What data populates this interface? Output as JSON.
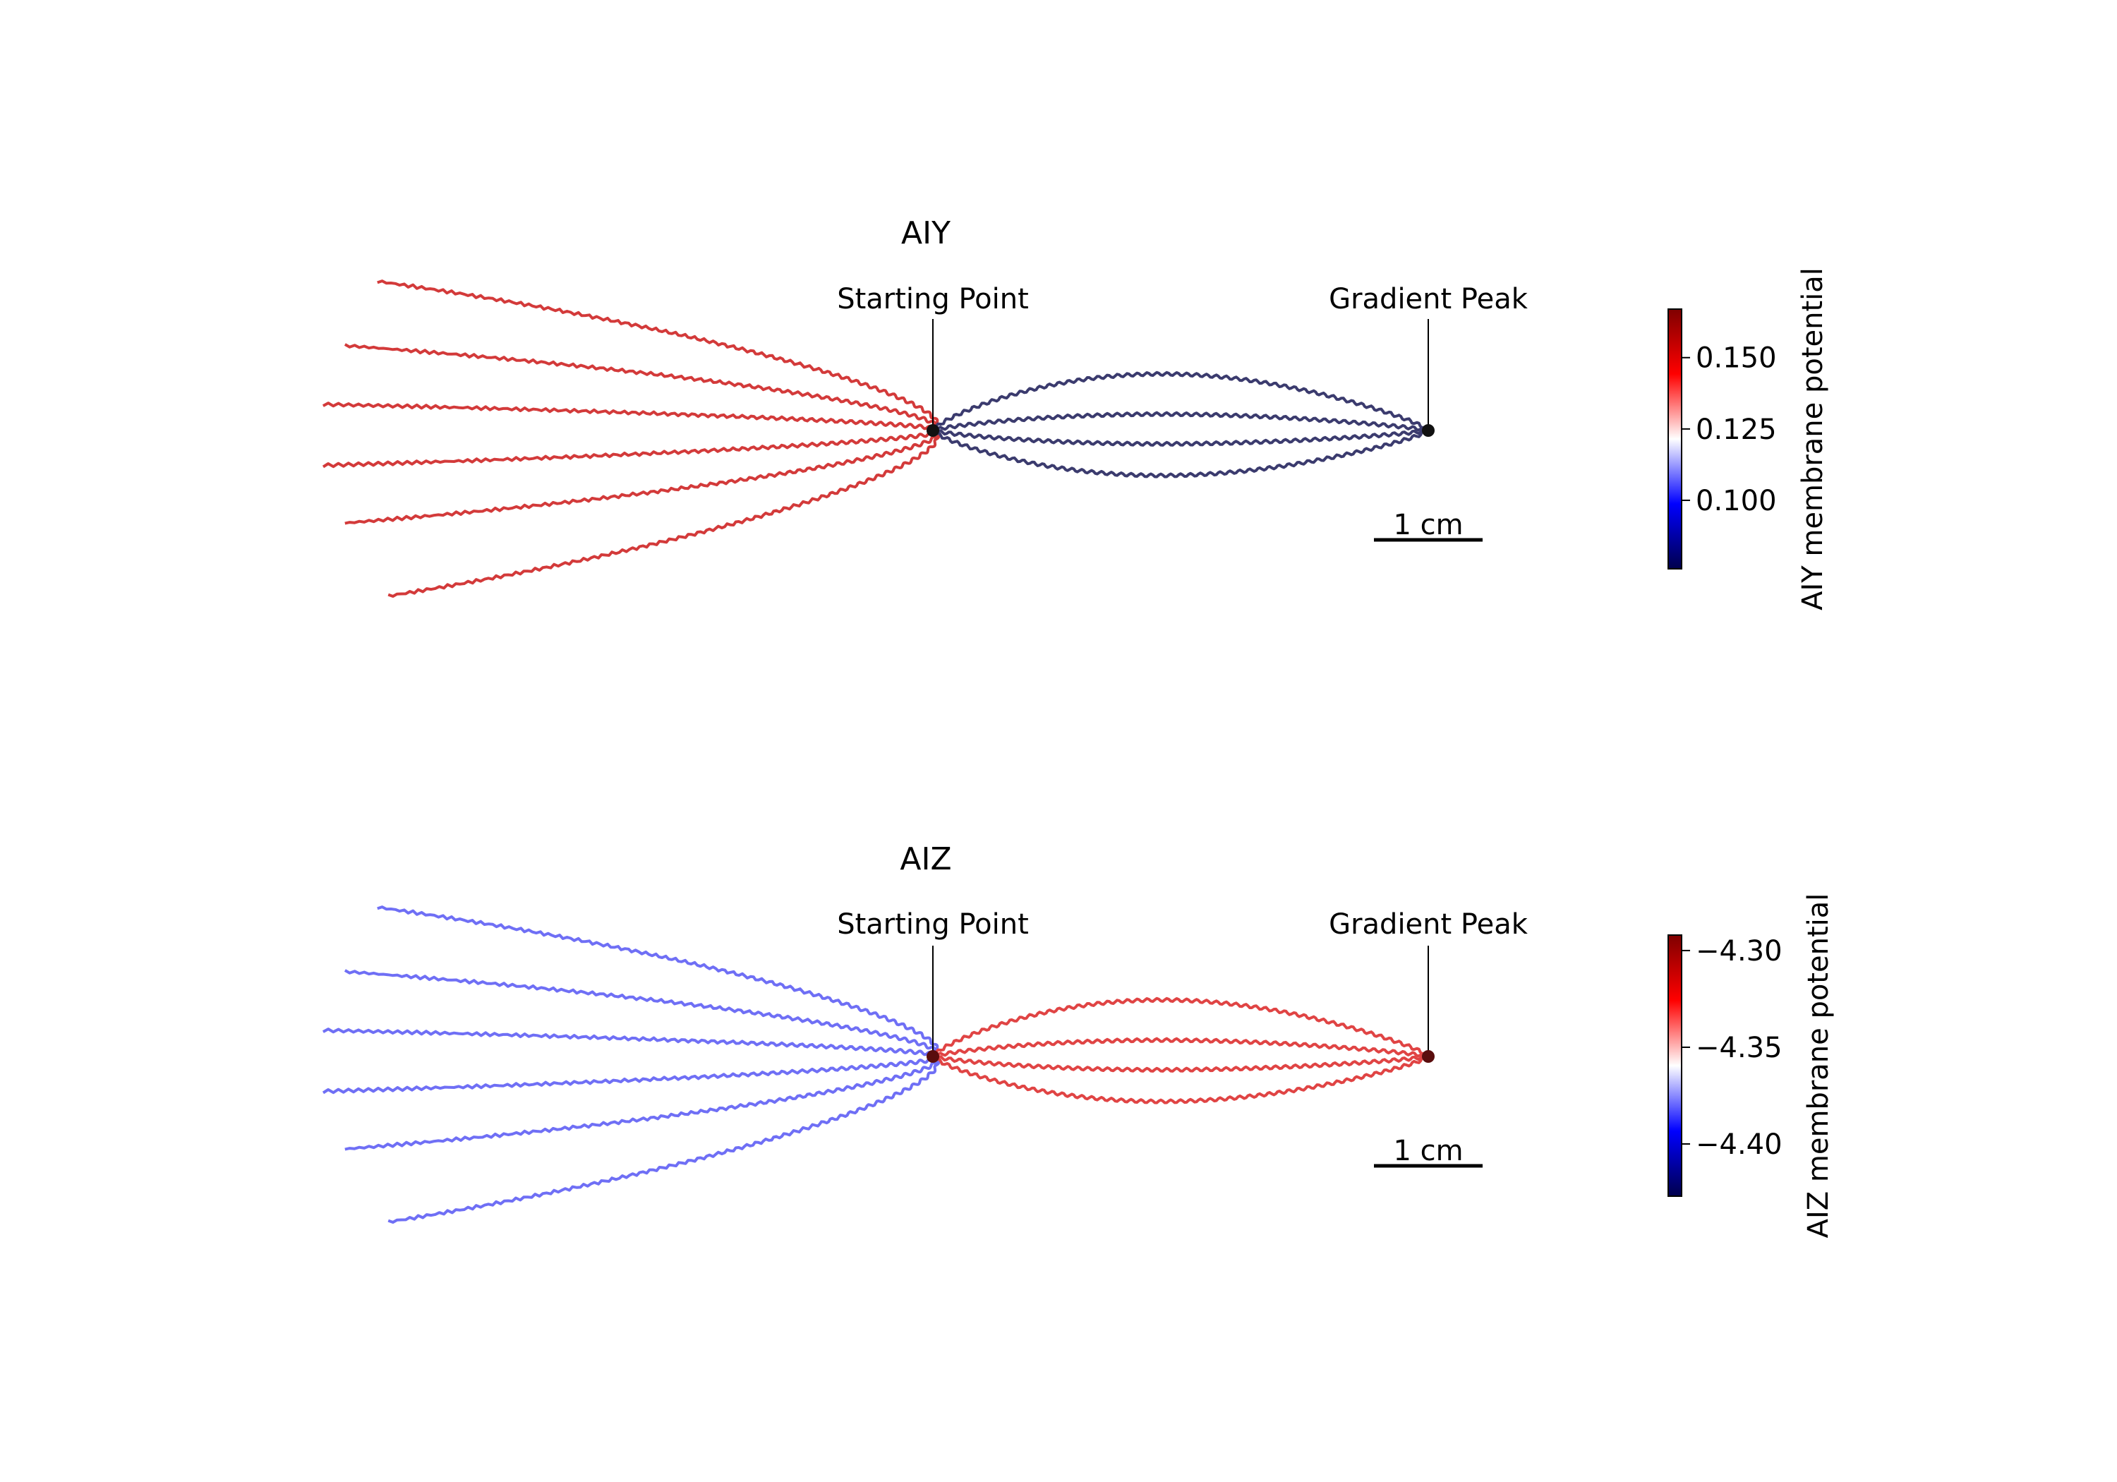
{
  "chart_data": [
    {
      "type": "line",
      "title": "AIY",
      "annotations": {
        "start_label": "Starting Point",
        "peak_label": "Gradient Peak"
      },
      "scalebar": {
        "label": "1 cm",
        "length_cm": 1
      },
      "start": [
        0,
        0
      ],
      "peak": [
        4.55,
        0
      ],
      "colorbar": {
        "label": "AIY membrane potential",
        "ticks": [
          "0.100",
          "0.125",
          "0.150"
        ],
        "tick_values": [
          0.1,
          0.125,
          0.15
        ],
        "range": [
          0.076,
          0.167
        ],
        "colormap": [
          "#00004c",
          "#0000ff",
          "#ffffff",
          "#ff0000",
          "#7f0000"
        ]
      },
      "away_color": "#d33a3a",
      "toward_color": "#3b3b6e",
      "trajectories_away": [
        {
          "end": [
            -5.1,
            1.37
          ],
          "bow": 0.0
        },
        {
          "end": [
            -5.4,
            0.78
          ],
          "bow": 0.0
        },
        {
          "end": [
            -5.6,
            0.24
          ],
          "bow": 0.0
        },
        {
          "end": [
            -5.6,
            -0.32
          ],
          "bow": 0.0
        },
        {
          "end": [
            -5.4,
            -0.85
          ],
          "bow": 0.0
        },
        {
          "end": [
            -5.0,
            -1.52
          ],
          "bow": 0.0
        }
      ],
      "trajectories_toward": [
        {
          "bulge": 0.59,
          "overshoot": [
            0.7,
            0.13
          ]
        },
        {
          "bulge": 0.17,
          "overshoot": [
            0.7,
            0.02
          ]
        },
        {
          "bulge": -0.14,
          "overshoot": [
            0.62,
            -0.1
          ]
        },
        {
          "bulge": -0.47,
          "overshoot": [
            0.6,
            -0.16
          ]
        }
      ]
    },
    {
      "type": "line",
      "title": "AIZ",
      "annotations": {
        "start_label": "Starting Point",
        "peak_label": "Gradient Peak"
      },
      "scalebar": {
        "label": "1 cm",
        "length_cm": 1
      },
      "start": [
        0,
        0
      ],
      "peak": [
        4.55,
        0
      ],
      "colorbar": {
        "label": "AIZ membrane potential",
        "ticks": [
          "−4.40",
          "−4.35",
          "−4.30"
        ],
        "tick_values": [
          -4.4,
          -4.35,
          -4.3
        ],
        "range": [
          -4.427,
          -4.292
        ],
        "colormap": [
          "#00004c",
          "#0000ff",
          "#ffffff",
          "#ff0000",
          "#7f0000"
        ]
      },
      "away_color": "#6f6ff5",
      "toward_color": "#e04444",
      "trajectories_away": [
        {
          "end": [
            -5.1,
            1.37
          ],
          "bow": 0.0
        },
        {
          "end": [
            -5.4,
            0.78
          ],
          "bow": 0.0
        },
        {
          "end": [
            -5.6,
            0.24
          ],
          "bow": 0.0
        },
        {
          "end": [
            -5.6,
            -0.32
          ],
          "bow": 0.0
        },
        {
          "end": [
            -5.4,
            -0.85
          ],
          "bow": 0.0
        },
        {
          "end": [
            -5.0,
            -1.52
          ],
          "bow": 0.0
        }
      ],
      "trajectories_toward": [
        {
          "bulge": 0.59,
          "overshoot": [
            0.7,
            0.13
          ]
        },
        {
          "bulge": 0.17,
          "overshoot": [
            0.7,
            0.02
          ]
        },
        {
          "bulge": -0.14,
          "overshoot": [
            0.62,
            -0.1
          ]
        },
        {
          "bulge": -0.47,
          "overshoot": [
            0.6,
            -0.16
          ]
        }
      ]
    }
  ]
}
